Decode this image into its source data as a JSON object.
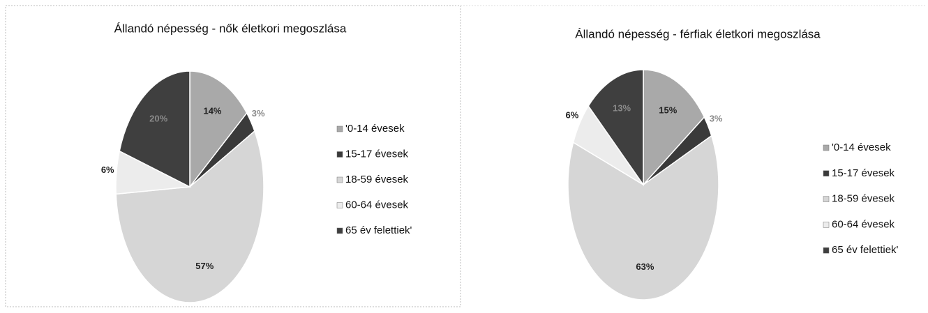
{
  "chart_data": [
    {
      "type": "pie",
      "title": "Állandó népesség - nők életkori megoszlása",
      "categories": [
        "'0-14 évesek",
        "15-17 évesek",
        "18-59 évesek",
        "60-64 évesek",
        "65 év felettiek'"
      ],
      "values": [
        14,
        3,
        57,
        6,
        20
      ],
      "value_labels": [
        "14%",
        "3%",
        "57%",
        "6%",
        "20%"
      ],
      "colors": [
        "#a9a9a9",
        "#3a3a3a",
        "#d6d6d6",
        "#ececec",
        "#3f3f3f"
      ]
    },
    {
      "type": "pie",
      "title": "Állandó népesség - férfiak életkori megoszlása",
      "categories": [
        "'0-14 évesek",
        "15-17 évesek",
        "18-59 évesek",
        "60-64 évesek",
        "65 év felettiek'"
      ],
      "values": [
        15,
        3,
        63,
        6,
        13
      ],
      "value_labels": [
        "15%",
        "3%",
        "63%",
        "6%",
        "13%"
      ],
      "colors": [
        "#a9a9a9",
        "#3a3a3a",
        "#d6d6d6",
        "#ececec",
        "#3f3f3f"
      ]
    }
  ]
}
